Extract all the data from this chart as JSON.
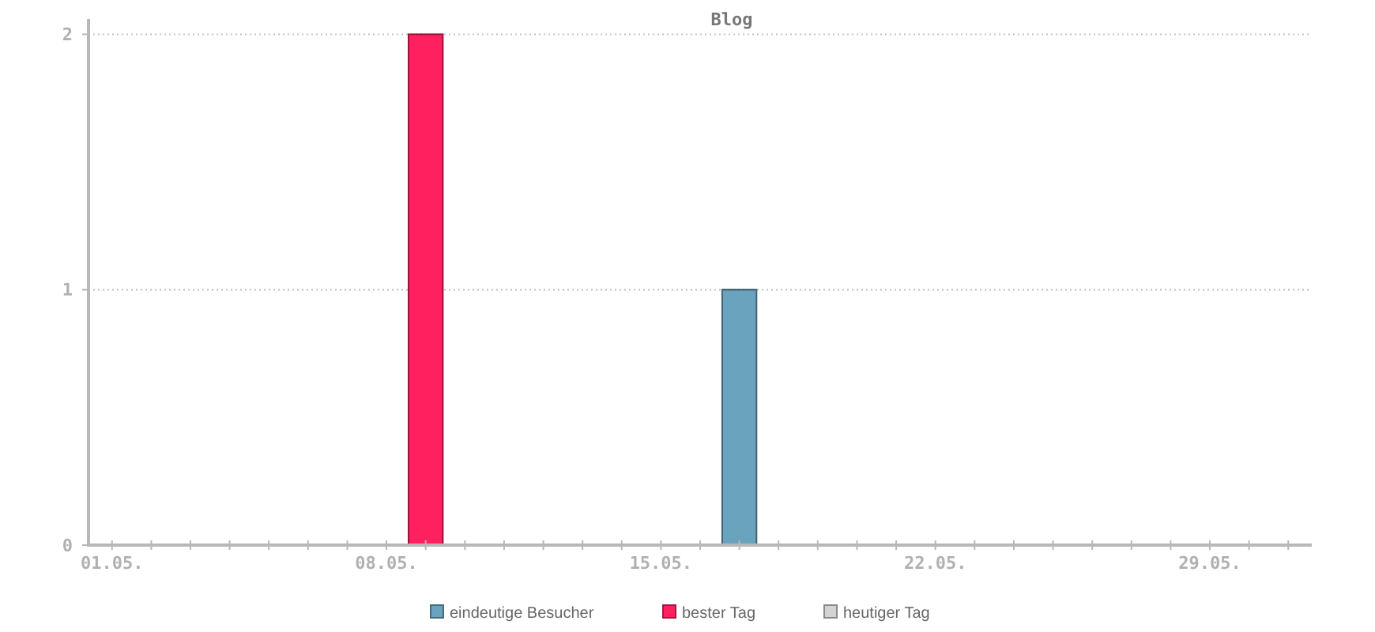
{
  "chart_data": {
    "type": "bar",
    "title": "Blog",
    "categories": [
      "01.05.",
      null,
      null,
      null,
      null,
      null,
      null,
      "08.05.",
      null,
      null,
      null,
      null,
      null,
      null,
      "15.05.",
      null,
      null,
      null,
      null,
      null,
      null,
      "22.05.",
      null,
      null,
      null,
      null,
      null,
      null,
      "29.05.",
      null,
      null
    ],
    "series": [
      {
        "name": "eindeutige Besucher",
        "color": "#6aa3bd",
        "values": [
          null,
          null,
          null,
          null,
          null,
          null,
          null,
          null,
          null,
          null,
          null,
          null,
          null,
          null,
          null,
          null,
          1,
          null,
          null,
          null,
          null,
          null,
          null,
          null,
          null,
          null,
          null,
          null,
          null,
          null,
          null
        ]
      },
      {
        "name": "bester Tag",
        "color": "#ff2060",
        "values": [
          null,
          null,
          null,
          null,
          null,
          null,
          null,
          null,
          2,
          null,
          null,
          null,
          null,
          null,
          null,
          null,
          null,
          null,
          null,
          null,
          null,
          null,
          null,
          null,
          null,
          null,
          null,
          null,
          null,
          null,
          null
        ]
      },
      {
        "name": "heutiger Tag",
        "color": "#d3d3d3",
        "values": [
          null,
          null,
          null,
          null,
          null,
          null,
          null,
          null,
          null,
          null,
          null,
          null,
          null,
          null,
          null,
          null,
          null,
          null,
          null,
          null,
          null,
          null,
          null,
          null,
          null,
          null,
          null,
          null,
          null,
          null,
          null
        ]
      }
    ],
    "stacked": true,
    "ylim": [
      0,
      2.06
    ],
    "yticks": [
      0,
      1,
      2
    ],
    "grid": "y",
    "legend": "bottom"
  }
}
